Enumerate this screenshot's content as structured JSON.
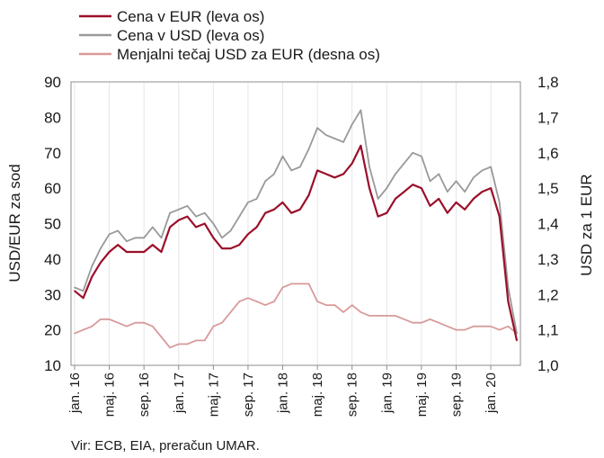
{
  "chart_data": {
    "type": "line",
    "legend": {
      "position": "top-left",
      "items": [
        {
          "label": "Cena v EUR (leva os)",
          "color": "#9b0f2a"
        },
        {
          "label": "Cena v USD (leva os)",
          "color": "#999999"
        },
        {
          "label": "Menjalni tečaj USD za EUR (desna os)",
          "color": "#d89a9a"
        }
      ]
    },
    "ylabel_left": "USD/EUR za sod",
    "ylabel_right": "USD za 1 EUR",
    "ylim_left": [
      10,
      90
    ],
    "ylim_right": [
      1.0,
      1.8
    ],
    "y_ticks_left": [
      "10",
      "20",
      "30",
      "40",
      "50",
      "60",
      "70",
      "80",
      "90"
    ],
    "y_ticks_right": [
      "1,0",
      "1,1",
      "1,2",
      "1,3",
      "1,4",
      "1,5",
      "1,6",
      "1,7",
      "1,8"
    ],
    "x_ticks": [
      "jan. 16",
      "maj. 16",
      "sep. 16",
      "jan. 17",
      "maj. 17",
      "sep. 17",
      "jan. 18",
      "maj. 18",
      "sep. 18",
      "jan. 19",
      "maj. 19",
      "sep. 19",
      "jan. 20"
    ],
    "grid": "vertical at month ticks",
    "x_months": [
      "2016-01",
      "2016-02",
      "2016-03",
      "2016-04",
      "2016-05",
      "2016-06",
      "2016-07",
      "2016-08",
      "2016-09",
      "2016-10",
      "2016-11",
      "2016-12",
      "2017-01",
      "2017-02",
      "2017-03",
      "2017-04",
      "2017-05",
      "2017-06",
      "2017-07",
      "2017-08",
      "2017-09",
      "2017-10",
      "2017-11",
      "2017-12",
      "2018-01",
      "2018-02",
      "2018-03",
      "2018-04",
      "2018-05",
      "2018-06",
      "2018-07",
      "2018-08",
      "2018-09",
      "2018-10",
      "2018-11",
      "2018-12",
      "2019-01",
      "2019-02",
      "2019-03",
      "2019-04",
      "2019-05",
      "2019-06",
      "2019-07",
      "2019-08",
      "2019-09",
      "2019-10",
      "2019-11",
      "2019-12",
      "2020-01",
      "2020-02",
      "2020-03",
      "2020-04"
    ],
    "series": [
      {
        "name": "Cena v EUR (leva os)",
        "axis": "left",
        "color": "#9b0f2a",
        "values": [
          31,
          29,
          35,
          39,
          42,
          44,
          42,
          42,
          42,
          44,
          42,
          49,
          51,
          52,
          49,
          50,
          46,
          43,
          43,
          44,
          47,
          49,
          53,
          54,
          56,
          53,
          54,
          58,
          65,
          64,
          63,
          64,
          67,
          72,
          60,
          52,
          53,
          57,
          59,
          61,
          60,
          55,
          57,
          53,
          56,
          54,
          57,
          59,
          60,
          52,
          28,
          17
        ]
      },
      {
        "name": "Cena v USD (leva os)",
        "axis": "left",
        "color": "#999999",
        "values": [
          32,
          31,
          38,
          43,
          47,
          48,
          45,
          46,
          46,
          49,
          46,
          53,
          54,
          55,
          52,
          53,
          50,
          46,
          48,
          52,
          56,
          57,
          62,
          64,
          69,
          65,
          66,
          71,
          77,
          75,
          74,
          73,
          78,
          82,
          66,
          57,
          60,
          64,
          67,
          70,
          69,
          62,
          64,
          59,
          62,
          59,
          63,
          65,
          66,
          56,
          32,
          19
        ]
      },
      {
        "name": "Menjalni tečaj USD za EUR (desna os)",
        "axis": "right",
        "color": "#d89a9a",
        "values": [
          1.09,
          1.1,
          1.11,
          1.13,
          1.13,
          1.12,
          1.11,
          1.12,
          1.12,
          1.11,
          1.08,
          1.05,
          1.06,
          1.06,
          1.07,
          1.07,
          1.11,
          1.12,
          1.15,
          1.18,
          1.19,
          1.18,
          1.17,
          1.18,
          1.22,
          1.23,
          1.23,
          1.23,
          1.18,
          1.17,
          1.17,
          1.15,
          1.17,
          1.15,
          1.14,
          1.14,
          1.14,
          1.14,
          1.13,
          1.12,
          1.12,
          1.13,
          1.12,
          1.11,
          1.1,
          1.1,
          1.11,
          1.11,
          1.11,
          1.1,
          1.11,
          1.09
        ]
      }
    ]
  },
  "source": "Vir: ECB, EIA, preračun UMAR."
}
